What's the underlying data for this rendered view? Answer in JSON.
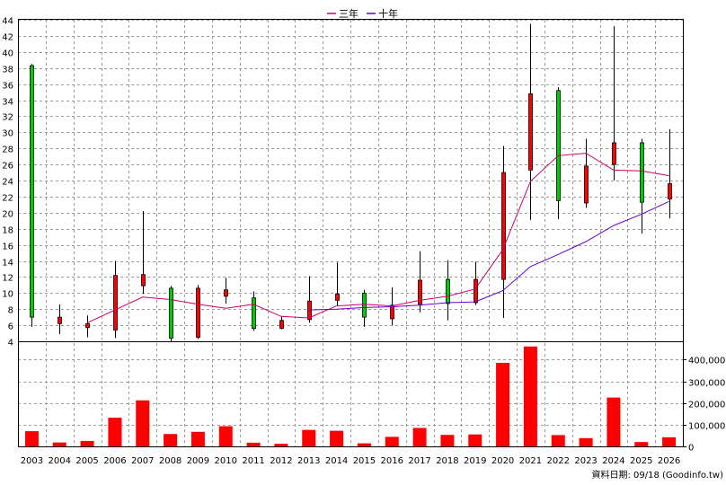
{
  "chart_data": {
    "type": "candlestick",
    "legend": {
      "position": "top-center",
      "items": [
        {
          "name": "三年",
          "color": "#cc0066"
        },
        {
          "name": "十年",
          "color": "#6600cc"
        }
      ]
    },
    "source_note": "資料日期: 09/18 (Goodinfo.tw)",
    "categories": [
      "2003",
      "2004",
      "2005",
      "2006",
      "2007",
      "2008",
      "2009",
      "2010",
      "2011",
      "2012",
      "2013",
      "2014",
      "2015",
      "2016",
      "2017",
      "2018",
      "2019",
      "2020",
      "2021",
      "2022",
      "2023",
      "2024",
      "2025",
      "2026"
    ],
    "price_axis": {
      "min": 4,
      "max": 44,
      "step": 2,
      "side": "left",
      "grid": true
    },
    "volume_axis": {
      "min": 0,
      "max": 480000,
      "ticks": [
        0,
        100000,
        200000,
        300000,
        400000
      ],
      "tick_labels": [
        "0",
        "100,000",
        "200,000",
        "300,000",
        "400,000"
      ],
      "side": "right",
      "grid": true
    },
    "ohlc": [
      {
        "open": 38.3,
        "close": 7.0,
        "high": 38.5,
        "low": 5.8
      },
      {
        "open": 6.2,
        "close": 7.0,
        "high": 8.6,
        "low": 4.9
      },
      {
        "open": 5.7,
        "close": 6.2,
        "high": 7.2,
        "low": 4.5
      },
      {
        "open": 5.4,
        "close": 12.2,
        "high": 14.0,
        "low": 4.4
      },
      {
        "open": 10.9,
        "close": 12.3,
        "high": 20.2,
        "low": 9.9
      },
      {
        "open": 10.6,
        "close": 4.4,
        "high": 10.9,
        "low": 3.9
      },
      {
        "open": 4.5,
        "close": 10.6,
        "high": 11.0,
        "low": 4.3
      },
      {
        "open": 9.6,
        "close": 10.4,
        "high": 11.9,
        "low": 8.7
      },
      {
        "open": 9.4,
        "close": 5.6,
        "high": 10.2,
        "low": 5.3
      },
      {
        "open": 5.6,
        "close": 6.6,
        "high": 7.1,
        "low": 5.5
      },
      {
        "open": 6.7,
        "close": 9.0,
        "high": 12.1,
        "low": 6.3
      },
      {
        "open": 9.1,
        "close": 9.9,
        "high": 13.8,
        "low": 8.4
      },
      {
        "open": 10.0,
        "close": 7.0,
        "high": 10.4,
        "low": 5.8
      },
      {
        "open": 6.8,
        "close": 8.5,
        "high": 10.7,
        "low": 6.0
      },
      {
        "open": 8.6,
        "close": 11.6,
        "high": 15.2,
        "low": 7.6
      },
      {
        "open": 11.7,
        "close": 8.7,
        "high": 14.1,
        "low": 6.6
      },
      {
        "open": 8.8,
        "close": 11.7,
        "high": 13.9,
        "low": 8.5
      },
      {
        "open": 11.7,
        "close": 25.0,
        "high": 28.3,
        "low": 6.9
      },
      {
        "open": 25.3,
        "close": 34.8,
        "high": 43.5,
        "low": 19.1
      },
      {
        "open": 35.2,
        "close": 21.5,
        "high": 35.6,
        "low": 19.2
      },
      {
        "open": 21.2,
        "close": 25.8,
        "high": 29.2,
        "low": 20.6
      },
      {
        "open": 26.0,
        "close": 28.7,
        "high": 43.2,
        "low": 24.0
      },
      {
        "open": 28.7,
        "close": 21.3,
        "high": 29.2,
        "low": 17.4
      },
      {
        "open": 21.7,
        "close": 23.6,
        "high": 30.4,
        "low": 19.3
      }
    ],
    "series": [
      {
        "name": "三年",
        "color": "#cc0066",
        "values": [
          null,
          null,
          6.3,
          7.9,
          9.5,
          9.2,
          8.6,
          8.1,
          8.6,
          7.1,
          6.9,
          8.4,
          8.6,
          8.4,
          9.1,
          9.6,
          10.5,
          15.4,
          23.9,
          27.1,
          27.4,
          25.3,
          25.2,
          24.6
        ]
      },
      {
        "name": "十年",
        "color": "#6600cc",
        "values": [
          null,
          null,
          null,
          null,
          null,
          null,
          null,
          null,
          null,
          null,
          7.9,
          8.0,
          8.2,
          8.3,
          8.5,
          8.8,
          8.9,
          10.3,
          13.3,
          14.8,
          16.4,
          18.4,
          19.8,
          21.4
        ]
      }
    ],
    "volume": [
      70000,
      18000,
      25000,
      132000,
      212000,
      57000,
      67000,
      93000,
      17000,
      12000,
      76000,
      72000,
      14000,
      44000,
      85000,
      53000,
      55000,
      385000,
      460000,
      52000,
      38000,
      225000,
      20000,
      42000
    ],
    "colors": {
      "up": "#ff0000",
      "down": "#00cc00",
      "volume": "#ff0000",
      "wick": "#000000"
    }
  }
}
